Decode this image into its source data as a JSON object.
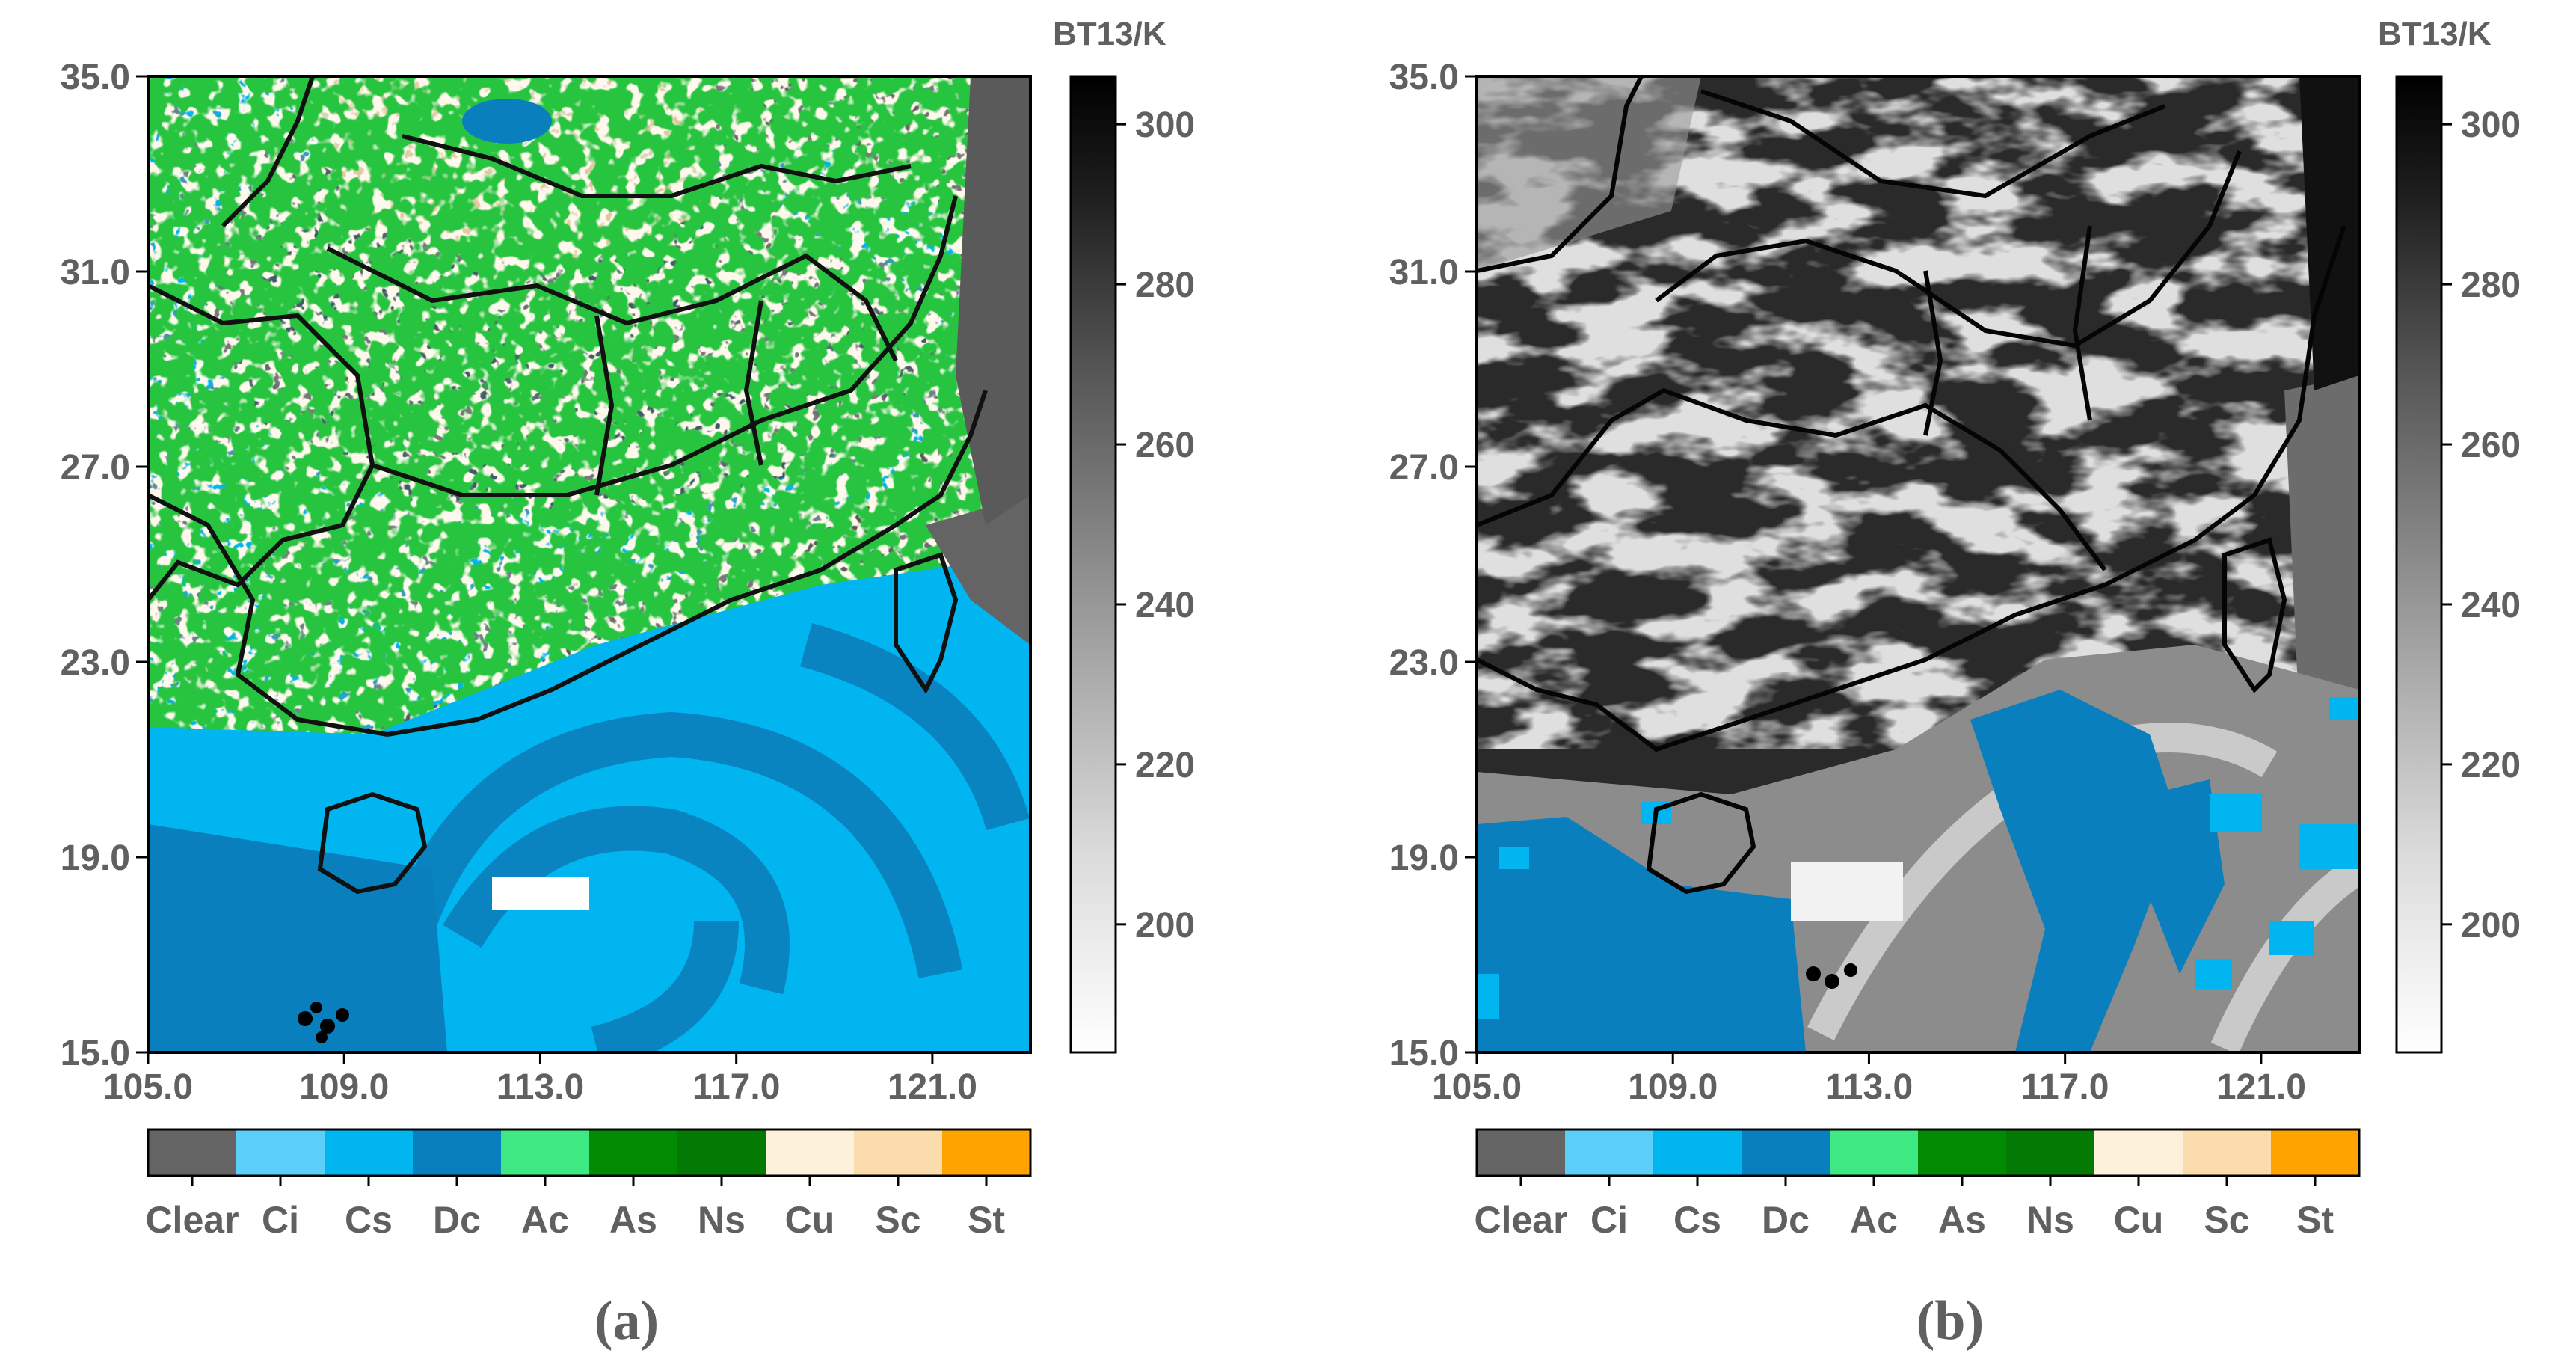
{
  "chart_data": [
    {
      "type": "heatmap",
      "panel_label": "(a)",
      "description_kind": "cloud-type classification map",
      "xlim": [
        105.0,
        123.0
      ],
      "ylim": [
        15.0,
        35.0
      ],
      "x_ticks": [
        "105.0",
        "109.0",
        "113.0",
        "117.0",
        "121.0"
      ],
      "x_tick_values": [
        105,
        109,
        113,
        117,
        121
      ],
      "y_ticks": [
        "15.0",
        "19.0",
        "23.0",
        "27.0",
        "31.0",
        "35.0"
      ],
      "y_tick_values": [
        15,
        19,
        23,
        27,
        31,
        35
      ],
      "colorbar": {
        "title": "BT13/K",
        "range": [
          184,
          306
        ],
        "ticks": [
          "200",
          "220",
          "240",
          "260",
          "280",
          "300"
        ],
        "tick_values": [
          200,
          220,
          240,
          260,
          280,
          300
        ]
      },
      "legend": {
        "classes": [
          "Clear",
          "Ci",
          "Cs",
          "Dc",
          "Ac",
          "As",
          "Ns",
          "Cu",
          "Sc",
          "St"
        ],
        "colors": [
          "#646464",
          "#5bcefa",
          "#00b5f0",
          "#0a7fbd",
          "#3ee882",
          "#028a02",
          "#037a03",
          "#fdf1dc",
          "#fbdcac",
          "#fea300"
        ]
      }
    },
    {
      "type": "heatmap",
      "panel_label": "(b)",
      "description_kind": "BT13 brightness temperature with cloud classes",
      "xlim": [
        105.0,
        123.0
      ],
      "ylim": [
        15.0,
        35.0
      ],
      "x_ticks": [
        "105.0",
        "109.0",
        "113.0",
        "117.0",
        "121.0"
      ],
      "x_tick_values": [
        105,
        109,
        113,
        117,
        121
      ],
      "y_ticks": [
        "15.0",
        "19.0",
        "23.0",
        "27.0",
        "31.0",
        "35.0"
      ],
      "y_tick_values": [
        15,
        19,
        23,
        27,
        31,
        35
      ],
      "colorbar": {
        "title": "BT13/K",
        "range": [
          184,
          306
        ],
        "ticks": [
          "200",
          "220",
          "240",
          "260",
          "280",
          "300"
        ],
        "tick_values": [
          200,
          220,
          240,
          260,
          280,
          300
        ]
      },
      "legend": {
        "classes": [
          "Clear",
          "Ci",
          "Cs",
          "Dc",
          "Ac",
          "As",
          "Ns",
          "Cu",
          "Sc",
          "St"
        ],
        "colors": [
          "#646464",
          "#5bcefa",
          "#00b5f0",
          "#0a7fbd",
          "#3ee882",
          "#028a02",
          "#037a03",
          "#fdf1dc",
          "#fbdcac",
          "#fea300"
        ]
      }
    }
  ]
}
